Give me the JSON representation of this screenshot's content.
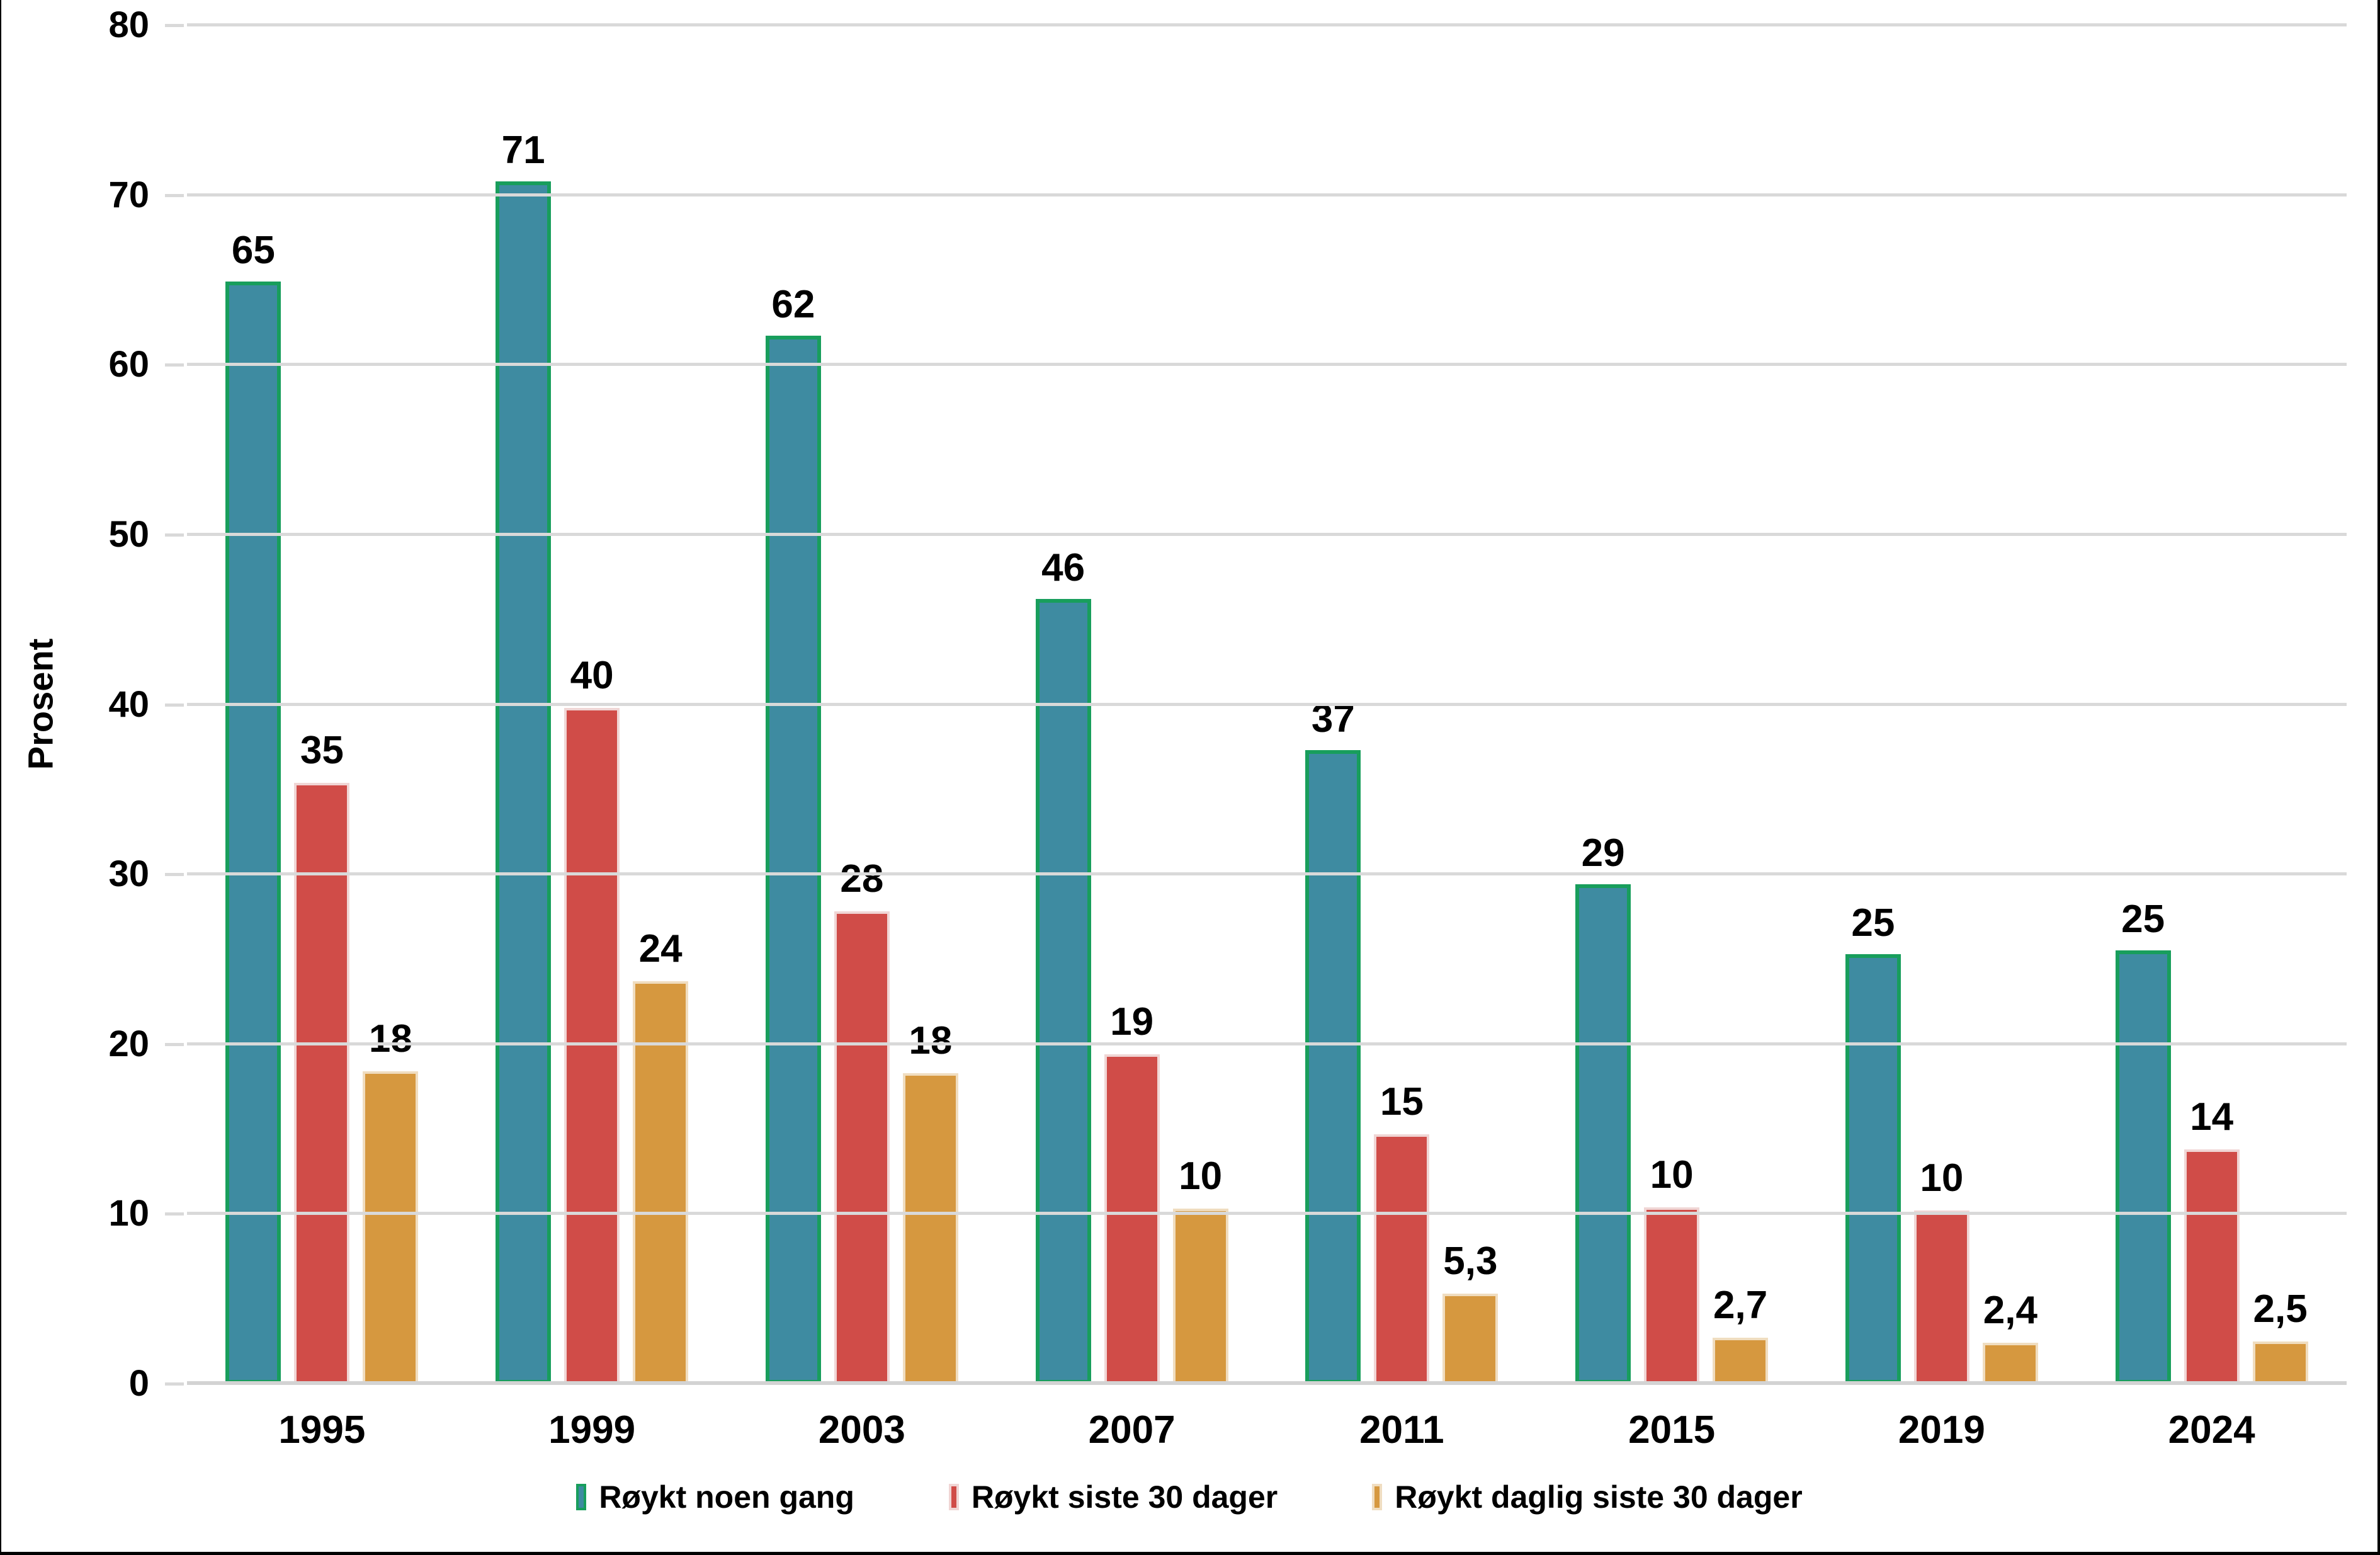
{
  "figure": {
    "background": "#ffffff",
    "border_color": "#000000",
    "gridline_color": "#d9d9d9",
    "text_color": "#000000"
  },
  "chart_data": {
    "type": "bar",
    "title": "",
    "xlabel": "",
    "ylabel": "Prosent",
    "ylim": [
      0,
      80
    ],
    "yticks": [
      0,
      10,
      20,
      30,
      40,
      50,
      60,
      70,
      80
    ],
    "grid": "horizontal gridlines on",
    "legend_position": "bottom",
    "categories": [
      "1995",
      "1999",
      "2003",
      "2007",
      "2011",
      "2015",
      "2019",
      "2024"
    ],
    "series": [
      {
        "name": "Røykt noen gang",
        "color": "#3e8ba1",
        "border_color": "#189e5c",
        "values": [
          64.9,
          70.8,
          61.7,
          46.2,
          37.3,
          29.4,
          25.3,
          25.5
        ],
        "labels": [
          "65",
          "71",
          "62",
          "46",
          "37",
          "29",
          "25",
          "25"
        ]
      },
      {
        "name": "Røykt siste 30 dager",
        "color": "#d04c48",
        "border_color": "#f0d6d5",
        "values": [
          35.4,
          39.8,
          27.8,
          19.4,
          14.7,
          10.4,
          10.2,
          13.8
        ],
        "labels": [
          "35",
          "40",
          "28",
          "19",
          "15",
          "10",
          "10",
          "14"
        ]
      },
      {
        "name": "Røykt daglig siste 30 dager",
        "color": "#d6983f",
        "border_color": "#f0ddc0",
        "values": [
          18.4,
          23.7,
          18.3,
          10.3,
          5.3,
          2.7,
          2.4,
          2.5
        ],
        "labels": [
          "18",
          "24",
          "18",
          "10",
          "5,3",
          "2,7",
          "2,4",
          "2,5"
        ]
      }
    ]
  }
}
